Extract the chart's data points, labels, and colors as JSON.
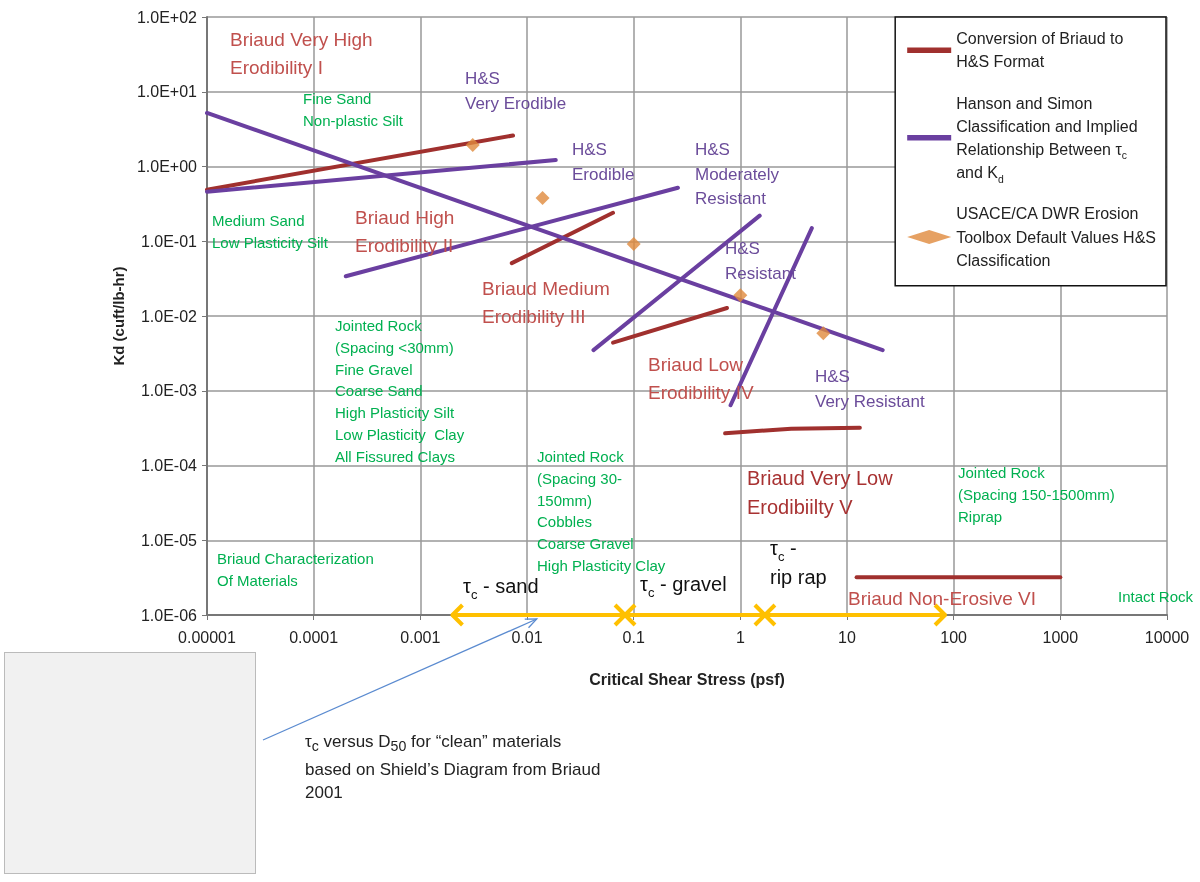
{
  "chart_data": {
    "type": "line",
    "xlabel": "Critical Shear Stress (psf)",
    "ylabel": "Kd (cuft/lb-hr)",
    "log": "xy",
    "grid": true,
    "legend": "top right",
    "xlim": [
      1e-05,
      10000
    ],
    "xticks": [
      {
        "value": 1e-05,
        "label": "0.00001"
      },
      0.0001,
      0.001,
      0.01,
      0.1,
      1,
      10,
      100,
      1000,
      10000
    ],
    "ylim": [
      1e-06,
      100
    ],
    "yticks": [
      {
        "value": 100,
        "label": "1.0E+02"
      },
      {
        "value": 10,
        "label": "1.0E+01"
      },
      {
        "value": 1,
        "label": "1.0E+00"
      },
      {
        "value": 0.1,
        "label": "1.0E-01"
      },
      {
        "value": 0.01,
        "label": "1.0E-02"
      },
      {
        "value": 0.001,
        "label": "1.0E-03"
      },
      {
        "value": 0.0001,
        "label": "1.0E-04"
      },
      {
        "value": 1e-05,
        "label": "1.0E-05"
      },
      {
        "value": 1e-06,
        "label": "1.0E-06"
      }
    ],
    "series": [
      {
        "name": "Conversion of Briaud to H&S Format",
        "color": "#a0302e",
        "x": [
          1e-05,
          0.0074
        ],
        "values": [
          0.49,
          2.6
        ]
      },
      {
        "color": "#a0302e",
        "x": [
          0.0072,
          0.064
        ],
        "values": [
          0.051,
          0.24
        ]
      },
      {
        "color": "#a0302e",
        "x": [
          0.064,
          0.75
        ],
        "values": [
          0.0044,
          0.0128
        ]
      },
      {
        "color": "#a0302e",
        "x": [
          0.72,
          3,
          13.2
        ],
        "values": [
          0.00027,
          0.00031,
          0.00032
        ]
      },
      {
        "color": "#a0302e",
        "x": [
          12.3,
          1000
        ],
        "values": [
          3.2e-06,
          3.2e-06
        ]
      },
      {
        "name": "Hanson and Simon Classification and Implied Relationship Between τ$_{c}$ and K$_{d}$",
        "color": "#6a3fa0",
        "x": [
          1e-05,
          21.6
        ],
        "values": [
          5.2,
          0.0035
        ]
      },
      {
        "color": "#6a3fa0",
        "x": [
          1e-05,
          0.0186
        ],
        "values": [
          0.46,
          1.22
        ]
      },
      {
        "color": "#6a3fa0",
        "x": [
          0.0002,
          0.26
        ],
        "values": [
          0.034,
          0.52
        ]
      },
      {
        "color": "#6a3fa0",
        "x": [
          0.042,
          1.52
        ],
        "values": [
          0.0035,
          0.22
        ]
      },
      {
        "color": "#6a3fa0",
        "x": [
          0.81,
          4.68
        ],
        "values": [
          0.00064,
          0.15
        ]
      },
      {
        "name": "USACE/CA DWR Erosion Toolbox Default Values H&S Classification",
        "type": "scatter",
        "marker": "diamond",
        "color": "#e08a3c",
        "x": [
          0.0031,
          0.014,
          0.1,
          1,
          6
        ],
        "values": [
          1.94,
          0.38,
          0.092,
          0.019,
          0.0059
        ]
      },
      {
        "marker": "cross",
        "color": "#ffc000",
        "x": [
          0.002,
          0.083,
          1.7,
          83
        ],
        "values": [
          1e-06,
          1e-06,
          1e-06,
          1e-06
        ]
      }
    ],
    "annotations": [
      "Briaud Very High\nErodibility I",
      "H&S\nVery Erodible",
      "Fine Sand\nNon-plastic Silt",
      "H&S\nErodible",
      "H&S\nModerately\nResistant",
      "Medium Sand\nLow Plasticity Silt",
      "Briaud High\nErodibility II",
      "H&S\nResistant",
      "Jointed Rock\n(Spacing <30mm)\nFine Gravel\nCoarse Sand\nHigh Plasticity Silt\nLow Plasticity  Clay\nAll Fissured Clays",
      "Briaud Medium\nErodibility III",
      "Jointed Rock\n(Spacing 30-\n150mm)\nCobbles\nCoarse Gravel\nHigh Plasticity Clay",
      "Briaud Low\nErodibility IV",
      "H&S\nVery Resistant",
      "Briaud Very Low\nErodibiilty V",
      "Jointed Rock\n(Spacing 150-1500mm)\nRiprap",
      "Briaud Characterization\nOf Materials",
      "τ$_{c}$ - sand",
      "τ$_{c}$ - gravel",
      "τ$_{c}$ -\nrip rap",
      "Briaud Non-Erosive VI",
      "Intact Rock",
      "τ$_{c}$ versus D$_{50}$ for “clean” materials based on Shield’s Diagram from Briaud 2001"
    ]
  }
}
